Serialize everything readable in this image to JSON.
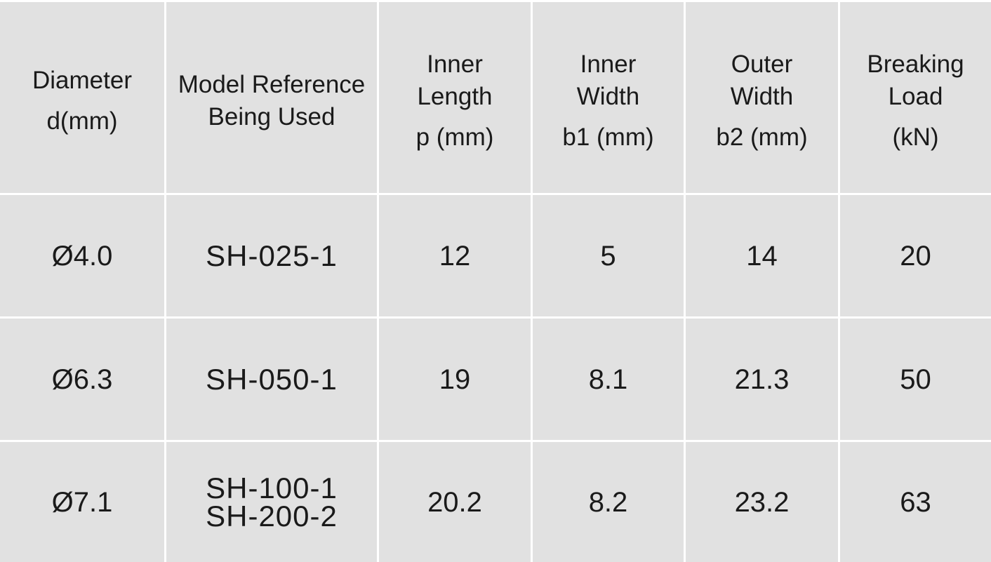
{
  "table": {
    "header": [
      {
        "lines": [
          "Diameter"
        ],
        "unit": "d(mm)"
      },
      {
        "lines": [
          "Model Reference",
          "Being Used"
        ]
      },
      {
        "lines": [
          "Inner",
          "Length"
        ],
        "unit": "p (mm)"
      },
      {
        "lines": [
          "Inner",
          "Width"
        ],
        "unit": "b1 (mm)"
      },
      {
        "lines": [
          "Outer",
          "Width"
        ],
        "unit": "b2 (mm)"
      },
      {
        "lines": [
          "Breaking",
          "Load"
        ],
        "unit": "(kN)"
      }
    ],
    "rows": [
      [
        "Ø4.0",
        [
          "SH-025-1"
        ],
        "12",
        "5",
        "14",
        "20"
      ],
      [
        "Ø6.3",
        [
          "SH-050-1"
        ],
        "19",
        "8.1",
        "21.3",
        "50"
      ],
      [
        "Ø7.1",
        [
          "SH-100-1",
          "SH-200-2"
        ],
        "20.2",
        "8.2",
        "23.2",
        "63"
      ]
    ]
  }
}
